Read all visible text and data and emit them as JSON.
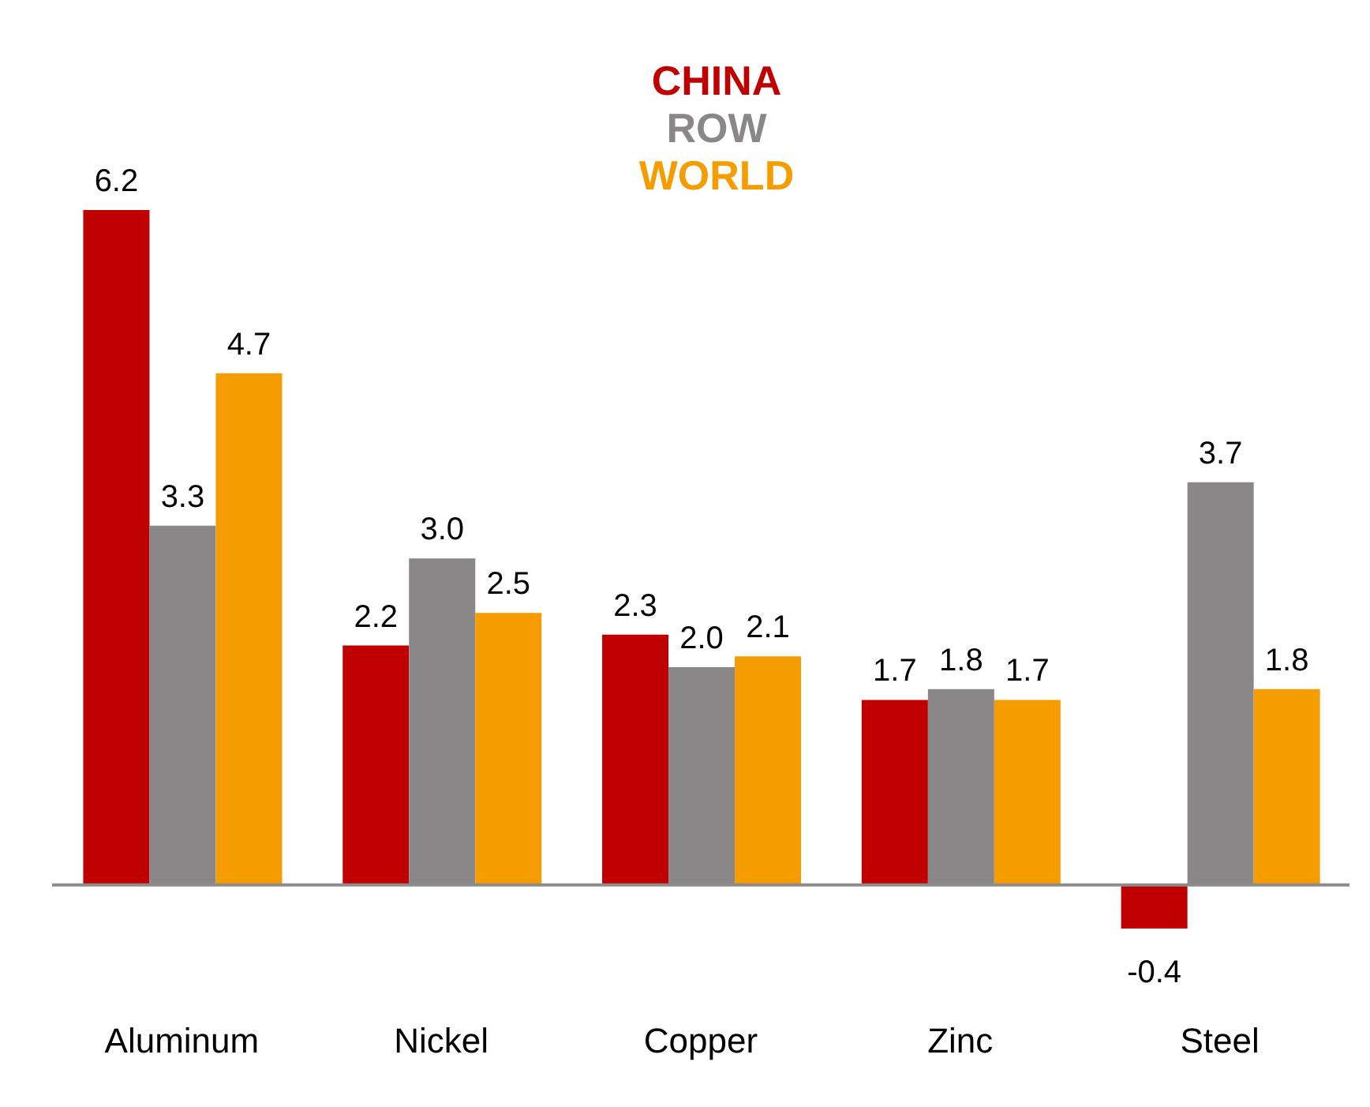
{
  "chart_data": {
    "type": "bar",
    "categories": [
      "Aluminum",
      "Nickel",
      "Copper",
      "Zinc",
      "Steel"
    ],
    "series": [
      {
        "name": "CHINA",
        "color": "#c00000",
        "values": [
          6.2,
          2.2,
          2.3,
          1.7,
          -0.4
        ],
        "value_labels": [
          "6.2",
          "2.2",
          "2.3",
          "1.7",
          "-0.4"
        ]
      },
      {
        "name": "ROW",
        "color": "#898788",
        "values": [
          3.3,
          3.0,
          2.0,
          1.8,
          3.7
        ],
        "value_labels": [
          "3.3",
          "3.0",
          "2.0",
          "1.8",
          "3.7"
        ]
      },
      {
        "name": "WORLD",
        "color": "#f59c00",
        "values": [
          4.7,
          2.5,
          2.1,
          1.7,
          1.8
        ],
        "value_labels": [
          "4.7",
          "2.5",
          "2.1",
          "1.7",
          "1.8"
        ]
      }
    ],
    "tick_labels": "x",
    "legend": "top"
  }
}
